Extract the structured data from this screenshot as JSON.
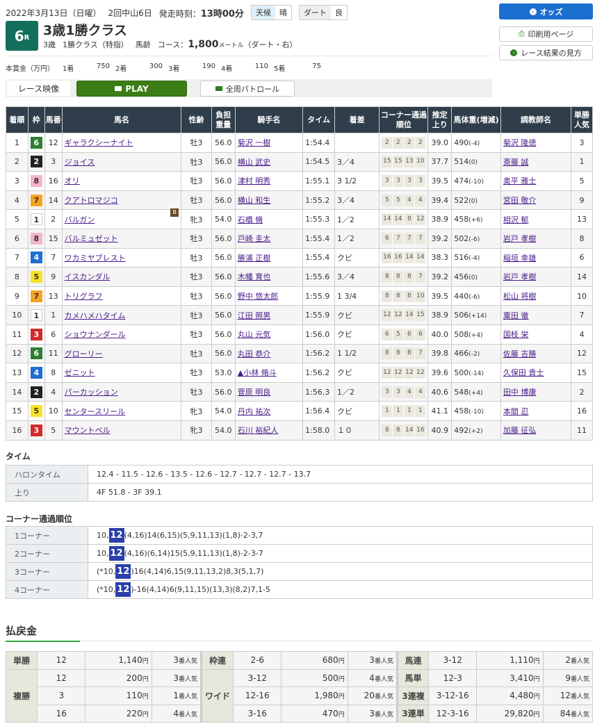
{
  "header": {
    "date": "2022年3月13日（日曜）",
    "meeting": "2回中山6日",
    "start_label": "発走時刻：",
    "start_time": "13時00分",
    "weather_label": "天候",
    "weather": "晴",
    "track_label": "ダート",
    "track_cond": "良"
  },
  "race": {
    "num": "6",
    "num_suffix": "R",
    "title": "3歳1勝クラス",
    "age": "3歳",
    "cls": "1勝クラス（特指）",
    "weight_type": "馬齢",
    "course_label": "コース：",
    "distance": "1,800",
    "unit": "メートル",
    "course_detail": "（ダート・右）"
  },
  "prize": {
    "label": "本賞金（万円）",
    "items": [
      {
        "k": "1着",
        "v": "750"
      },
      {
        "k": "2着",
        "v": "300"
      },
      {
        "k": "3着",
        "v": "190"
      },
      {
        "k": "4着",
        "v": "110"
      },
      {
        "k": "5着",
        "v": "75"
      }
    ]
  },
  "buttons": {
    "video": "レース映像",
    "play": "PLAY",
    "patrol": "全周パトロール",
    "odds": "オッズ",
    "print": "印刷用ページ",
    "howto": "レース結果の見方"
  },
  "waku_colors": {
    "1": [
      "#ffffff",
      "#333"
    ],
    "2": [
      "#222222",
      "#fff"
    ],
    "3": [
      "#d12b2b",
      "#fff"
    ],
    "4": [
      "#1e6fcf",
      "#fff"
    ],
    "5": [
      "#f7e12a",
      "#333"
    ],
    "6": [
      "#2e7d32",
      "#fff"
    ],
    "7": [
      "#f5a223",
      "#333"
    ],
    "8": [
      "#f5b4cd",
      "#333"
    ]
  },
  "results": {
    "headers": [
      "着順",
      "枠",
      "馬番",
      "馬名",
      "性齢",
      "負担重量",
      "騎手名",
      "タイム",
      "着差",
      "コーナー通過順位",
      "推定上り",
      "馬体重(増減)",
      "調教師名",
      "単勝人気"
    ],
    "rows": [
      {
        "pos": "1",
        "waku": "6",
        "num": "12",
        "horse": "ギャラクシーナイト",
        "sa": "牡3",
        "wt": "56.0",
        "jockey": "菊沢 一樹",
        "time": "1:54.4",
        "margin": "",
        "corners": [
          "2",
          "2",
          "2",
          "2"
        ],
        "last": "39.0",
        "bw": "490",
        "bwd": "(-4)",
        "trainer": "菊沢 隆徳",
        "pop": "3"
      },
      {
        "pos": "2",
        "waku": "2",
        "num": "3",
        "horse": "ジョイス",
        "sa": "牡3",
        "wt": "56.0",
        "jockey": "横山 武史",
        "time": "1:54.5",
        "margin": "3／4",
        "corners": [
          "15",
          "15",
          "13",
          "10"
        ],
        "last": "37.7",
        "bw": "514",
        "bwd": "(0)",
        "trainer": "斎藤 誠",
        "pop": "1"
      },
      {
        "pos": "3",
        "waku": "8",
        "num": "16",
        "horse": "オリ",
        "sa": "牡3",
        "wt": "56.0",
        "jockey": "津村 明秀",
        "time": "1:55.1",
        "margin": "3 1/2",
        "corners": [
          "3",
          "3",
          "3",
          "3"
        ],
        "last": "39.5",
        "bw": "474",
        "bwd": "(-10)",
        "trainer": "奥平 雅士",
        "pop": "5"
      },
      {
        "pos": "4",
        "waku": "7",
        "num": "14",
        "horse": "クアトロマジコ",
        "sa": "牡3",
        "wt": "56.0",
        "jockey": "横山 和生",
        "time": "1:55.2",
        "margin": "3／4",
        "corners": [
          "5",
          "5",
          "4",
          "4"
        ],
        "last": "39.4",
        "bw": "522",
        "bwd": "(0)",
        "trainer": "宮田 敬介",
        "pop": "9"
      },
      {
        "pos": "5",
        "waku": "1",
        "num": "2",
        "horse": "バルガン",
        "blinker": "B",
        "sa": "牝3",
        "wt": "54.0",
        "jockey": "石橋 脩",
        "time": "1:55.3",
        "margin": "1／2",
        "corners": [
          "14",
          "14",
          "8",
          "12"
        ],
        "last": "38.9",
        "bw": "458",
        "bwd": "(+6)",
        "trainer": "相沢 郁",
        "pop": "13"
      },
      {
        "pos": "6",
        "waku": "8",
        "num": "15",
        "horse": "バルミュゼット",
        "sa": "牡3",
        "wt": "56.0",
        "jockey": "戸崎 圭太",
        "time": "1:55.4",
        "margin": "1／2",
        "corners": [
          "6",
          "7",
          "7",
          "7"
        ],
        "last": "39.2",
        "bw": "502",
        "bwd": "(-6)",
        "trainer": "岩戸 孝樹",
        "pop": "8"
      },
      {
        "pos": "7",
        "waku": "4",
        "num": "7",
        "horse": "ワカミヤブレスト",
        "sa": "牡3",
        "wt": "56.0",
        "jockey": "勝浦 正樹",
        "time": "1:55.4",
        "margin": "クビ",
        "corners": [
          "16",
          "16",
          "14",
          "14"
        ],
        "last": "38.3",
        "bw": "516",
        "bwd": "(-4)",
        "trainer": "稲垣 幸雄",
        "pop": "6"
      },
      {
        "pos": "8",
        "waku": "5",
        "num": "9",
        "horse": "イスカンダル",
        "sa": "牡3",
        "wt": "56.0",
        "jockey": "木幡 育也",
        "time": "1:55.6",
        "margin": "3／4",
        "corners": [
          "8",
          "8",
          "8",
          "7"
        ],
        "last": "39.2",
        "bw": "456",
        "bwd": "(0)",
        "trainer": "岩戸 孝樹",
        "pop": "14"
      },
      {
        "pos": "9",
        "waku": "7",
        "num": "13",
        "horse": "トリグラフ",
        "sa": "牡3",
        "wt": "56.0",
        "jockey": "野中 悠太郎",
        "time": "1:55.9",
        "margin": "1 3/4",
        "corners": [
          "8",
          "8",
          "8",
          "10"
        ],
        "last": "39.5",
        "bw": "440",
        "bwd": "(-6)",
        "trainer": "松山 将樹",
        "pop": "10"
      },
      {
        "pos": "10",
        "waku": "1",
        "num": "1",
        "horse": "カメハメハタイム",
        "sa": "牡3",
        "wt": "56.0",
        "jockey": "江田 照男",
        "time": "1:55.9",
        "margin": "クビ",
        "corners": [
          "12",
          "12",
          "14",
          "15"
        ],
        "last": "38.9",
        "bw": "506",
        "bwd": "(+14)",
        "trainer": "粟田 徹",
        "pop": "7"
      },
      {
        "pos": "11",
        "waku": "3",
        "num": "6",
        "horse": "ショウナンダール",
        "sa": "牡3",
        "wt": "56.0",
        "jockey": "丸山 元気",
        "time": "1:56.0",
        "margin": "クビ",
        "corners": [
          "6",
          "5",
          "6",
          "6"
        ],
        "last": "40.0",
        "bw": "508",
        "bwd": "(+4)",
        "trainer": "国枝 栄",
        "pop": "4"
      },
      {
        "pos": "12",
        "waku": "6",
        "num": "11",
        "horse": "グローリー",
        "sa": "牡3",
        "wt": "56.0",
        "jockey": "丸田 恭介",
        "time": "1:56.2",
        "margin": "1 1/2",
        "corners": [
          "8",
          "8",
          "8",
          "7"
        ],
        "last": "39.8",
        "bw": "466",
        "bwd": "(-2)",
        "trainer": "佐藤 吉勝",
        "pop": "12"
      },
      {
        "pos": "13",
        "waku": "4",
        "num": "8",
        "horse": "ゼニット",
        "sa": "牡3",
        "wt": "53.0",
        "jockey": "▲小林 脩斗",
        "time": "1:56.2",
        "margin": "クビ",
        "corners": [
          "12",
          "12",
          "12",
          "12"
        ],
        "last": "39.6",
        "bw": "500",
        "bwd": "(-14)",
        "trainer": "久保田 貴士",
        "pop": "15"
      },
      {
        "pos": "14",
        "waku": "2",
        "num": "4",
        "horse": "パーカッション",
        "sa": "牡3",
        "wt": "56.0",
        "jockey": "菅原 明良",
        "time": "1:56.3",
        "margin": "1／2",
        "corners": [
          "3",
          "3",
          "4",
          "4"
        ],
        "last": "40.6",
        "bw": "548",
        "bwd": "(+4)",
        "trainer": "田中 博康",
        "pop": "2"
      },
      {
        "pos": "15",
        "waku": "5",
        "num": "10",
        "horse": "センタースリール",
        "sa": "牝3",
        "wt": "54.0",
        "jockey": "丹内 祐次",
        "time": "1:56.4",
        "margin": "クビ",
        "corners": [
          "1",
          "1",
          "1",
          "1"
        ],
        "last": "41.1",
        "bw": "458",
        "bwd": "(-10)",
        "trainer": "本間 忍",
        "pop": "16"
      },
      {
        "pos": "16",
        "waku": "3",
        "num": "5",
        "horse": "マウントベル",
        "sa": "牝3",
        "wt": "54.0",
        "jockey": "石川 裕紀人",
        "time": "1:58.0",
        "margin": "１０",
        "corners": [
          "8",
          "8",
          "14",
          "16"
        ],
        "last": "40.9",
        "bw": "492",
        "bwd": "(+2)",
        "trainer": "加藤 征弘",
        "pop": "11"
      }
    ]
  },
  "time_section": {
    "title": "タイム",
    "rows": [
      {
        "k": "ハロンタイム",
        "v": "12.4 - 11.5 - 12.6 - 13.5 - 12.6 - 12.7 - 12.7 - 12.7 - 13.7"
      },
      {
        "k": "上り",
        "v": "4F 51.8 - 3F 39.1"
      }
    ]
  },
  "corner_section": {
    "title": "コーナー通過順位",
    "rows": [
      {
        "k": "1コーナー",
        "pre": "10,",
        "hl": "12",
        "post": "(4,16)14(6,15)(5,9,11,13)(1,8)-2-3,7"
      },
      {
        "k": "2コーナー",
        "pre": "10,",
        "hl": "12",
        "post": "(4,16)(6,14)15(5,9,11,13)(1,8)-2-3-7"
      },
      {
        "k": "3コーナー",
        "pre": "(*10,",
        "hl": "12",
        "post": ")16(4,14)6,15(9,11,13,2)8,3(5,1,7)"
      },
      {
        "k": "4コーナー",
        "pre": "(*10,",
        "hl": "12",
        "post": ")-16(4,14)6(9,11,15)(13,3)(8,2)7,1-5"
      }
    ]
  },
  "payout": {
    "title": "払戻金",
    "yen": "円",
    "pop_suffix": "番人気",
    "rows": [
      [
        {
          "k": "単勝",
          "span": 1,
          "c": "12",
          "a": "1,140",
          "p": "3"
        },
        {
          "k": "枠連",
          "span": 1,
          "c": "2-6",
          "a": "680",
          "p": "3"
        },
        {
          "k": "馬連",
          "span": 1,
          "c": "3-12",
          "a": "1,110",
          "p": "2"
        }
      ],
      [
        {
          "k": "複勝",
          "span": 3,
          "c": "12",
          "a": "200",
          "p": "3"
        },
        {
          "k": "ワイド",
          "span": 3,
          "c": "3-12",
          "a": "500",
          "p": "4"
        },
        {
          "k": "馬単",
          "span": 1,
          "c": "12-3",
          "a": "3,410",
          "p": "9"
        }
      ],
      [
        {
          "c": "3",
          "a": "110",
          "p": "1"
        },
        {
          "c": "12-16",
          "a": "1,980",
          "p": "20"
        },
        {
          "k": "3連複",
          "span": 1,
          "c": "3-12-16",
          "a": "4,480",
          "p": "12"
        }
      ],
      [
        {
          "c": "16",
          "a": "220",
          "p": "4"
        },
        {
          "c": "3-16",
          "a": "470",
          "p": "3"
        },
        {
          "k": "3連単",
          "span": 1,
          "c": "12-3-16",
          "a": "29,820",
          "p": "84"
        }
      ]
    ]
  }
}
